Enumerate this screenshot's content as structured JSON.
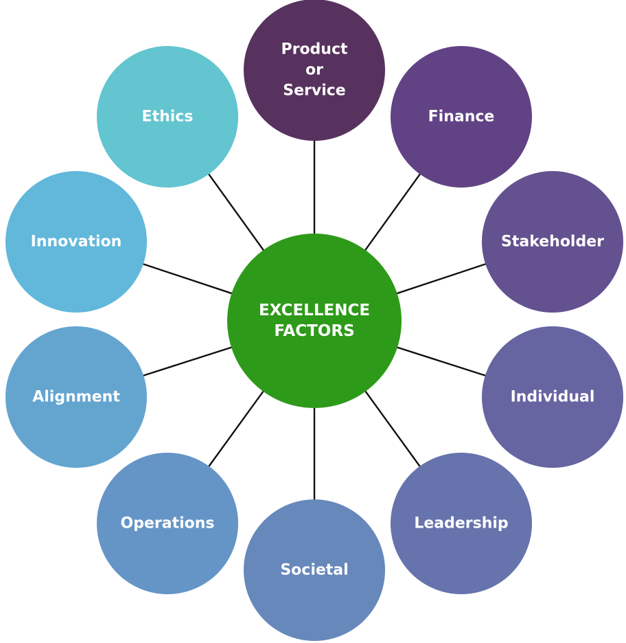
{
  "center": {
    "lines": [
      "EXCELLENCE",
      "FACTORS"
    ],
    "color": "#2e9a1a"
  },
  "nodes": [
    {
      "id": "product-or-service",
      "lines": [
        "Product",
        "or",
        "Service"
      ],
      "color": "#58325e"
    },
    {
      "id": "finance",
      "lines": [
        "Finance"
      ],
      "color": "#614385"
    },
    {
      "id": "stakeholder",
      "lines": [
        "Stakeholder"
      ],
      "color": "#64518f"
    },
    {
      "id": "individual",
      "lines": [
        "Individual"
      ],
      "color": "#6664a1"
    },
    {
      "id": "leadership",
      "lines": [
        "Leadership"
      ],
      "color": "#6773ac"
    },
    {
      "id": "societal",
      "lines": [
        "Societal"
      ],
      "color": "#6788bb"
    },
    {
      "id": "operations",
      "lines": [
        "Operations"
      ],
      "color": "#6595c6"
    },
    {
      "id": "alignment",
      "lines": [
        "Alignment"
      ],
      "color": "#64a5d0"
    },
    {
      "id": "innovation",
      "lines": [
        "Innovation"
      ],
      "color": "#61b8db"
    },
    {
      "id": "ethics",
      "lines": [
        "Ethics"
      ],
      "color": "#62c5cf"
    }
  ],
  "line_color": "#111111"
}
